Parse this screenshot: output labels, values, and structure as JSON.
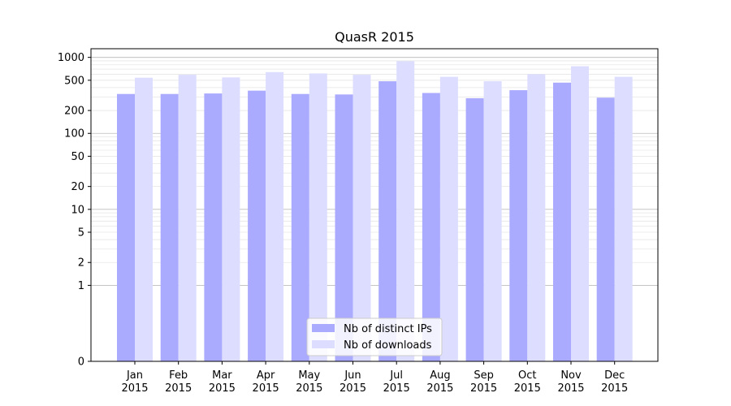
{
  "chart_data": {
    "type": "bar",
    "title": "QuasR 2015",
    "xlabel": "",
    "ylabel": "",
    "y_scale": "symlog",
    "ylim": [
      0,
      1300
    ],
    "y_ticks": [
      0,
      1,
      2,
      5,
      10,
      20,
      50,
      100,
      200,
      500,
      1000
    ],
    "y_tick_labels": [
      "0",
      "1",
      "2",
      "5",
      "10",
      "20",
      "50",
      "100",
      "200",
      "500",
      "1000"
    ],
    "categories": [
      "Jan\n2015",
      "Feb\n2015",
      "Mar\n2015",
      "Apr\n2015",
      "May\n2015",
      "Jun\n2015",
      "Jul\n2015",
      "Aug\n2015",
      "Sep\n2015",
      "Oct\n2015",
      "Nov\n2015",
      "Dec\n2015"
    ],
    "category_lines": [
      [
        "Jan",
        "2015"
      ],
      [
        "Feb",
        "2015"
      ],
      [
        "Mar",
        "2015"
      ],
      [
        "Apr",
        "2015"
      ],
      [
        "May",
        "2015"
      ],
      [
        "Jun",
        "2015"
      ],
      [
        "Jul",
        "2015"
      ],
      [
        "Aug",
        "2015"
      ],
      [
        "Sep",
        "2015"
      ],
      [
        "Oct",
        "2015"
      ],
      [
        "Nov",
        "2015"
      ],
      [
        "Dec",
        "2015"
      ]
    ],
    "series": [
      {
        "name": "Nb of distinct IPs",
        "color": "#aaaaff",
        "values": [
          330,
          330,
          335,
          365,
          330,
          325,
          485,
          340,
          290,
          370,
          465,
          295
        ]
      },
      {
        "name": "Nb of downloads",
        "color": "#ddddff",
        "values": [
          540,
          590,
          545,
          640,
          615,
          590,
          890,
          555,
          485,
          600,
          765,
          555
        ]
      }
    ],
    "grid": true,
    "legend_position": "bottom-center"
  }
}
